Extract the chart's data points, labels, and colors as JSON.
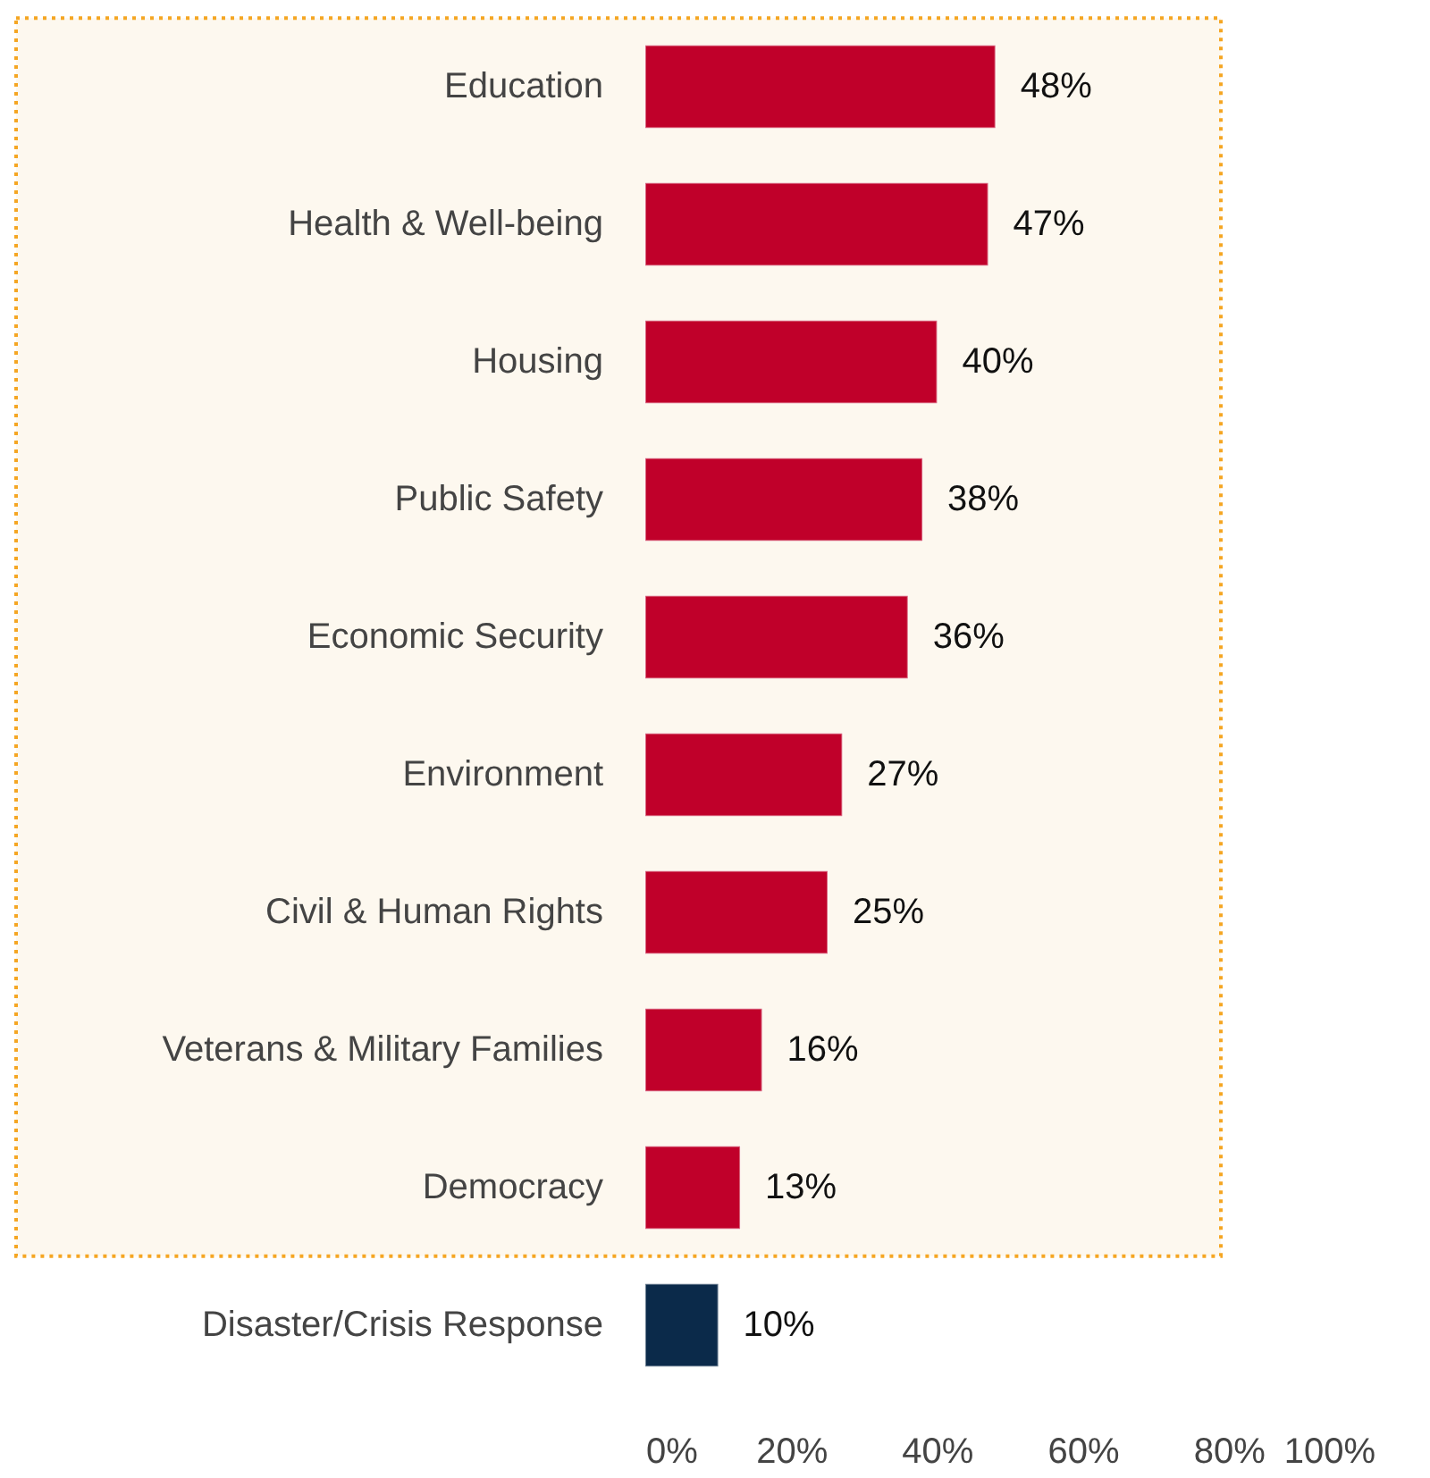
{
  "chart_data": {
    "type": "bar",
    "orientation": "horizontal",
    "categories": [
      "Education",
      "Health & Well-being",
      "Housing",
      "Public Safety",
      "Economic Security",
      "Environment",
      "Civil & Human Rights",
      "Veterans & Military Families",
      "Democracy",
      "Disaster/Crisis Response"
    ],
    "values": [
      48,
      47,
      40,
      38,
      36,
      27,
      25,
      16,
      13,
      10
    ],
    "colors": [
      "#c0002a",
      "#c0002a",
      "#c0002a",
      "#c0002a",
      "#c0002a",
      "#c0002a",
      "#c0002a",
      "#c0002a",
      "#c0002a",
      "#0b2a4a"
    ],
    "value_labels": [
      "48%",
      "47%",
      "40%",
      "38%",
      "36%",
      "27%",
      "25%",
      "16%",
      "13%",
      "10%"
    ],
    "xlim": [
      0,
      100
    ],
    "xticks": [
      {
        "value": 0,
        "label": "0%"
      },
      {
        "value": 20,
        "label": "20%"
      },
      {
        "value": 40,
        "label": "40%"
      },
      {
        "value": 60,
        "label": "60%"
      },
      {
        "value": 80,
        "label": "80%"
      },
      {
        "value": 100,
        "label": "100%"
      }
    ],
    "bands": [
      {
        "axis": "y",
        "from": "Education",
        "to": "Democracy",
        "color": "#fdf8ef"
      }
    ]
  }
}
